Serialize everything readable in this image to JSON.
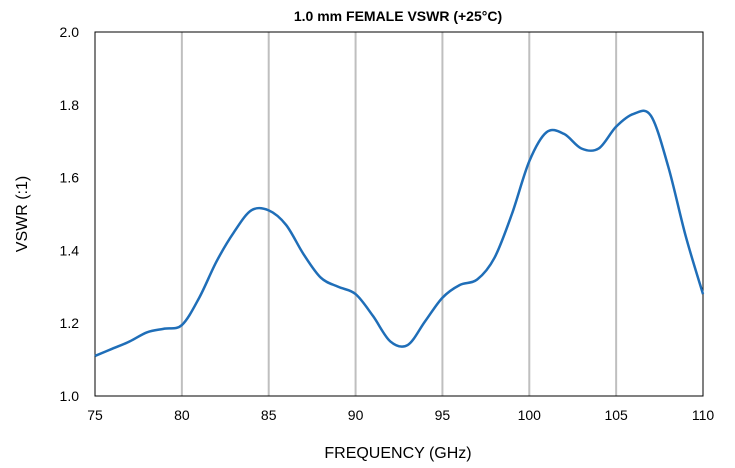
{
  "chart_data": {
    "type": "line",
    "title": "1.0 mm FEMALE VSWR (+25°C)",
    "xlabel": "FREQUENCY  (GHz)",
    "ylabel": "VSWR (:1)",
    "xlim": [
      75,
      110
    ],
    "ylim": [
      1.0,
      2.0
    ],
    "xticks": [
      "75",
      "80",
      "85",
      "90",
      "95",
      "100",
      "105",
      "110"
    ],
    "yticks": [
      "1.0",
      "1.2",
      "1.4",
      "1.6",
      "1.8",
      "2.0"
    ],
    "grid": "vertical",
    "series": [
      {
        "color": "#1F6EB8",
        "x": [
          75,
          76,
          77,
          78,
          79,
          80,
          81,
          82,
          83,
          84,
          85,
          86,
          87,
          88,
          89,
          90,
          91,
          92,
          93,
          94,
          95,
          96,
          97,
          98,
          99,
          100,
          101,
          102,
          103,
          104,
          105,
          106,
          107,
          108,
          109,
          110
        ],
        "y": [
          1.11,
          1.13,
          1.15,
          1.175,
          1.185,
          1.195,
          1.27,
          1.37,
          1.45,
          1.51,
          1.51,
          1.47,
          1.39,
          1.325,
          1.3,
          1.28,
          1.22,
          1.15,
          1.14,
          1.205,
          1.27,
          1.305,
          1.32,
          1.38,
          1.5,
          1.645,
          1.725,
          1.72,
          1.68,
          1.68,
          1.74,
          1.775,
          1.77,
          1.63,
          1.44,
          1.28
        ]
      }
    ]
  }
}
